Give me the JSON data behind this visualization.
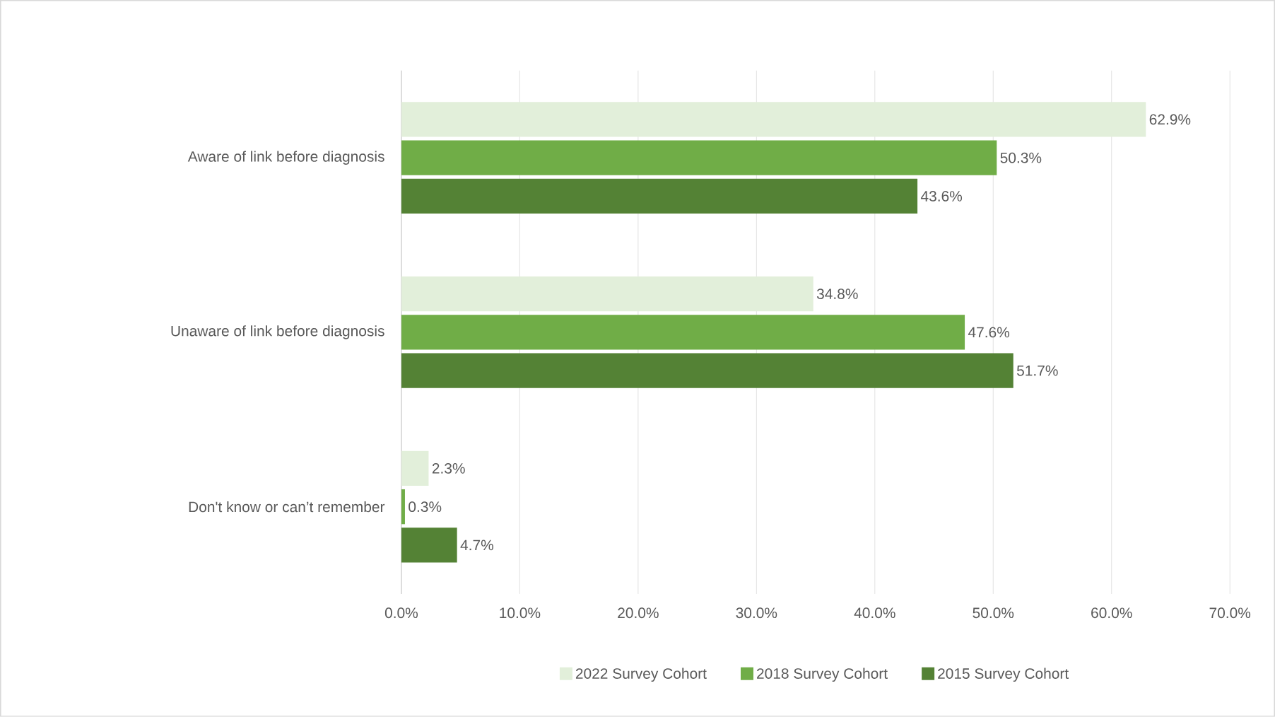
{
  "chart_data": {
    "type": "bar",
    "orientation": "horizontal",
    "categories": [
      "Aware of link before diagnosis",
      "Unaware of link before diagnosis",
      "Don't know or can’t remember"
    ],
    "series": [
      {
        "name": "2022 Survey Cohort",
        "color": "#e2efda",
        "values": [
          62.9,
          34.8,
          2.3
        ],
        "value_labels": [
          "62.9%",
          "34.8%",
          "2.3%"
        ]
      },
      {
        "name": "2018 Survey Cohort",
        "color": "#70ad47",
        "values": [
          50.3,
          47.6,
          0.3
        ],
        "value_labels": [
          "50.3%",
          "47.6%",
          "0.3%"
        ]
      },
      {
        "name": "2015 Survey Cohort",
        "color": "#548235",
        "values": [
          43.6,
          51.7,
          4.7
        ],
        "value_labels": [
          "43.6%",
          "51.7%",
          "4.7%"
        ]
      }
    ],
    "xlim": [
      0,
      70
    ],
    "xticks": [
      {
        "value": 0,
        "label": "0.0%"
      },
      {
        "value": 10,
        "label": "10.0%"
      },
      {
        "value": 20,
        "label": "20.0%"
      },
      {
        "value": 30,
        "label": "30.0%"
      },
      {
        "value": 40,
        "label": "40.0%"
      },
      {
        "value": 50,
        "label": "50.0%"
      },
      {
        "value": 60,
        "label": "60.0%"
      },
      {
        "value": 70,
        "label": "70.0%"
      }
    ],
    "grid": "x",
    "legend": "bottom"
  }
}
